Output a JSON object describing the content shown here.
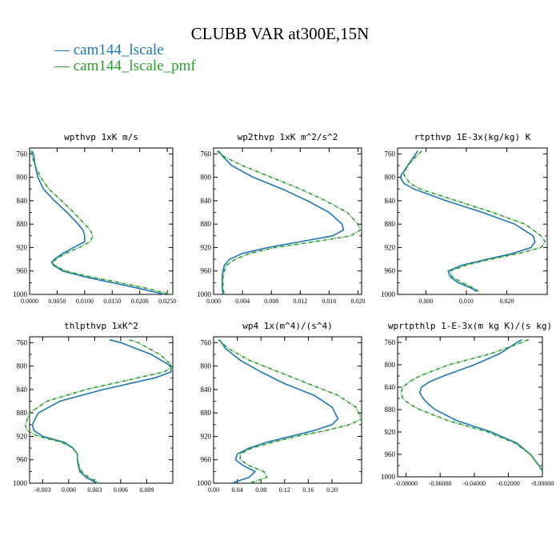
{
  "title": "CLUBB VAR at300E,15N",
  "legend": [
    {
      "name": "cam144_lscale",
      "color": "#1f77b4"
    },
    {
      "name": "cam144_lscale_pmf",
      "color": "#2ca02c"
    }
  ],
  "chart_data": [
    {
      "type": "line",
      "title": "wpthvp  1xK m/s",
      "ylim": [
        1000,
        750
      ],
      "yticks": [
        "760",
        "800",
        "840",
        "880",
        "920",
        "960",
        "1000"
      ],
      "xlim": [
        0,
        0.026
      ],
      "xticks": [
        "0.0000",
        "0.0050",
        "0.0100",
        "0.0150",
        "0.0200",
        "0.0250"
      ],
      "y": [
        755,
        765,
        780,
        800,
        820,
        840,
        860,
        880,
        890,
        900,
        910,
        920,
        930,
        940,
        945,
        950,
        960,
        970,
        980,
        990,
        1000
      ],
      "series": [
        {
          "name": "cam144_lscale",
          "values": [
            0.0005,
            0.0008,
            0.001,
            0.0015,
            0.0025,
            0.0045,
            0.0068,
            0.0088,
            0.0097,
            0.01,
            0.01,
            0.008,
            0.006,
            0.0045,
            0.004,
            0.0043,
            0.006,
            0.01,
            0.015,
            0.02,
            0.0245
          ]
        },
        {
          "name": "cam144_lscale_pmf",
          "values": [
            0.0003,
            0.0005,
            0.001,
            0.002,
            0.0035,
            0.0058,
            0.008,
            0.01,
            0.011,
            0.0115,
            0.011,
            0.009,
            0.0065,
            0.0048,
            0.0042,
            0.0045,
            0.0065,
            0.011,
            0.0165,
            0.0215,
            0.0255
          ]
        }
      ]
    },
    {
      "type": "line",
      "title": "wp2thvp  1xK m^2/s^2",
      "ylim": [
        1000,
        750
      ],
      "yticks": [
        "760",
        "800",
        "840",
        "880",
        "920",
        "960",
        "1000"
      ],
      "xlim": [
        0,
        0.0205
      ],
      "xticks": [
        "0.000",
        "0.004",
        "0.008",
        "0.012",
        "0.016",
        "0.020"
      ],
      "y": [
        755,
        765,
        780,
        800,
        820,
        840,
        860,
        880,
        890,
        900,
        910,
        920,
        930,
        940,
        950,
        960,
        970,
        980,
        990,
        1000
      ],
      "series": [
        {
          "name": "cam144_lscale",
          "values": [
            0.0007,
            0.0013,
            0.0025,
            0.0055,
            0.0095,
            0.013,
            0.016,
            0.0178,
            0.018,
            0.0165,
            0.012,
            0.0075,
            0.004,
            0.0022,
            0.0015,
            0.0013,
            0.0012,
            0.0012,
            0.0012,
            0.0013
          ]
        },
        {
          "name": "cam144_lscale_pmf",
          "values": [
            0.0005,
            0.0015,
            0.004,
            0.008,
            0.012,
            0.0155,
            0.0185,
            0.02,
            0.0203,
            0.019,
            0.014,
            0.0085,
            0.005,
            0.003,
            0.0018,
            0.0015,
            0.0013,
            0.0013,
            0.0013,
            0.0015
          ]
        }
      ]
    },
    {
      "type": "line",
      "title": "rtpthvp  1E-3x(kg/kg) K",
      "ylim": [
        1000,
        750
      ],
      "yticks": [
        "760",
        "800",
        "840",
        "880",
        "920",
        "960",
        "1000"
      ],
      "xlim": [
        -0.007,
        0.03
      ],
      "xticks": [
        "0.000",
        "0.010",
        "0.020"
      ],
      "y": [
        755,
        765,
        780,
        795,
        800,
        810,
        820,
        840,
        860,
        880,
        900,
        910,
        920,
        930,
        940,
        950,
        960,
        970,
        980,
        990,
        995
      ],
      "series": [
        {
          "name": "cam144_lscale",
          "values": [
            -0.002,
            -0.003,
            -0.0045,
            -0.006,
            -0.0063,
            -0.0055,
            -0.003,
            0.005,
            0.014,
            0.022,
            0.0265,
            0.027,
            0.026,
            0.0215,
            0.015,
            0.009,
            0.0055,
            0.006,
            0.008,
            0.0115,
            0.0125
          ]
        },
        {
          "name": "cam144_lscale_pmf",
          "values": [
            -0.001,
            -0.0025,
            -0.0045,
            -0.0055,
            -0.005,
            -0.004,
            -0.0015,
            0.0075,
            0.0165,
            0.0245,
            0.0285,
            0.0295,
            0.0285,
            0.023,
            0.016,
            0.01,
            0.006,
            0.0065,
            0.009,
            0.012,
            0.013
          ]
        }
      ]
    },
    {
      "type": "line",
      "title": "thlpthvp  1xK^2",
      "ylim": [
        1000,
        750
      ],
      "yticks": [
        "760",
        "800",
        "840",
        "880",
        "920",
        "960",
        "1000"
      ],
      "xlim": [
        -0.0045,
        0.012
      ],
      "xticks": [
        "-0.003",
        "0.000",
        "0.003",
        "0.006",
        "0.009"
      ],
      "y": [
        755,
        760,
        780,
        800,
        810,
        820,
        840,
        860,
        880,
        900,
        910,
        920,
        930,
        940,
        950,
        960,
        970,
        980,
        990,
        1000
      ],
      "series": [
        {
          "name": "cam144_lscale",
          "values": [
            0.0047,
            0.006,
            0.0095,
            0.0118,
            0.0118,
            0.01,
            0.004,
            -0.001,
            -0.0035,
            -0.0042,
            -0.004,
            -0.003,
            -0.0005,
            0.0005,
            0.001,
            0.001,
            0.0011,
            0.0013,
            0.002,
            0.0033
          ]
        },
        {
          "name": "cam144_lscale_pmf",
          "values": [
            0.007,
            0.008,
            0.0105,
            0.012,
            0.011,
            0.008,
            0.002,
            -0.0025,
            -0.0045,
            -0.005,
            -0.0048,
            -0.0035,
            -0.0008,
            0.0005,
            0.001,
            0.001,
            0.0012,
            0.0015,
            0.0023,
            0.0035
          ]
        }
      ]
    },
    {
      "type": "line",
      "title": "wp4  1x(m^4)/(s^4)",
      "ylim": [
        1000,
        750
      ],
      "yticks": [
        "760",
        "800",
        "840",
        "880",
        "920",
        "960",
        "1000"
      ],
      "xlim": [
        0,
        0.25
      ],
      "xticks": [
        "0.00",
        "0.04",
        "0.08",
        "0.12",
        "0.16",
        "0.20"
      ],
      "y": [
        755,
        770,
        790,
        810,
        830,
        850,
        870,
        890,
        900,
        910,
        920,
        930,
        940,
        950,
        960,
        970,
        980,
        990,
        1000
      ],
      "series": [
        {
          "name": "cam144_lscale",
          "values": [
            0.01,
            0.02,
            0.045,
            0.08,
            0.12,
            0.17,
            0.2,
            0.21,
            0.2,
            0.17,
            0.13,
            0.09,
            0.06,
            0.04,
            0.037,
            0.05,
            0.07,
            0.06,
            0.03
          ]
        },
        {
          "name": "cam144_lscale_pmf",
          "values": [
            0.008,
            0.025,
            0.06,
            0.11,
            0.16,
            0.21,
            0.24,
            0.25,
            0.23,
            0.19,
            0.14,
            0.1,
            0.065,
            0.045,
            0.045,
            0.06,
            0.085,
            0.09,
            0.06
          ]
        }
      ]
    },
    {
      "type": "line",
      "title": "wprtpthlp  1-E-3x(m kg K)/(s kg)",
      "ylim": [
        1000,
        750
      ],
      "yticks": [
        "760",
        "800",
        "840",
        "880",
        "920",
        "960",
        "1000"
      ],
      "xlim": [
        -0.085,
        0
      ],
      "xticks": [
        "-0.08000",
        "-0.06000",
        "-0.04000",
        "-0.02000",
        "-0.00000"
      ],
      "y": [
        755,
        760,
        780,
        800,
        820,
        830,
        840,
        850,
        860,
        870,
        880,
        900,
        920,
        940,
        960,
        980,
        990
      ],
      "series": [
        {
          "name": "cam144_lscale",
          "values": [
            -0.012,
            -0.015,
            -0.025,
            -0.04,
            -0.058,
            -0.066,
            -0.071,
            -0.072,
            -0.07,
            -0.067,
            -0.063,
            -0.05,
            -0.03,
            -0.015,
            -0.007,
            -0.002,
            0.0
          ]
        },
        {
          "name": "cam144_lscale_pmf",
          "values": [
            -0.008,
            -0.012,
            -0.03,
            -0.055,
            -0.072,
            -0.078,
            -0.082,
            -0.083,
            -0.082,
            -0.078,
            -0.072,
            -0.055,
            -0.032,
            -0.016,
            -0.007,
            -0.002,
            0.0
          ]
        }
      ]
    }
  ]
}
